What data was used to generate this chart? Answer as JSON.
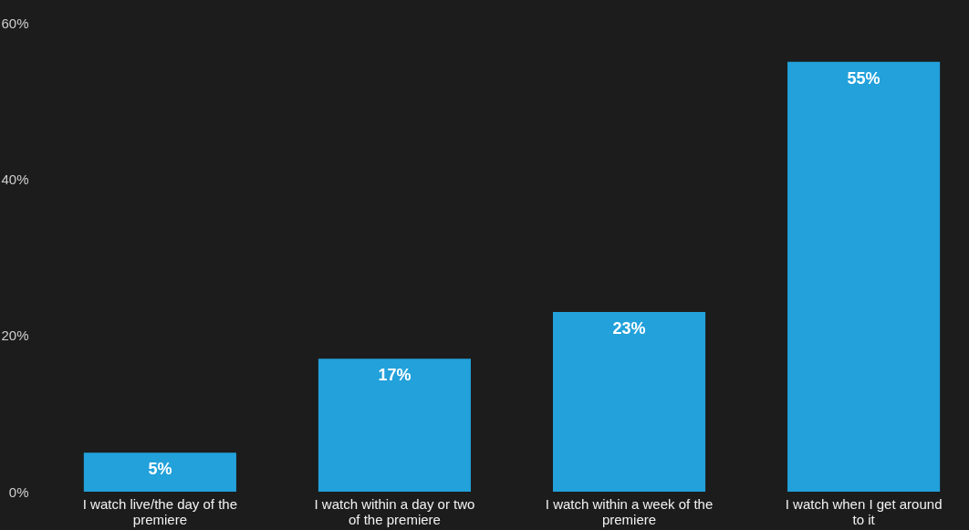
{
  "chart_data": {
    "type": "bar",
    "categories": [
      "I watch live/the day of the\npremiere",
      "I watch within a day or two\nof the premiere",
      "I watch within a week of the\npremiere",
      "I watch when I get around\nto it"
    ],
    "values": [
      5,
      17,
      23,
      55
    ],
    "value_labels": [
      "5%",
      "17%",
      "23%",
      "55%"
    ],
    "color": "#22a1db",
    "ylim": [
      0,
      60
    ],
    "yticks": [
      {
        "value": 0,
        "label": "0%"
      },
      {
        "value": 20,
        "label": "20%"
      },
      {
        "value": 40,
        "label": "40%"
      },
      {
        "value": 60,
        "label": "60%"
      }
    ],
    "grid": false
  }
}
